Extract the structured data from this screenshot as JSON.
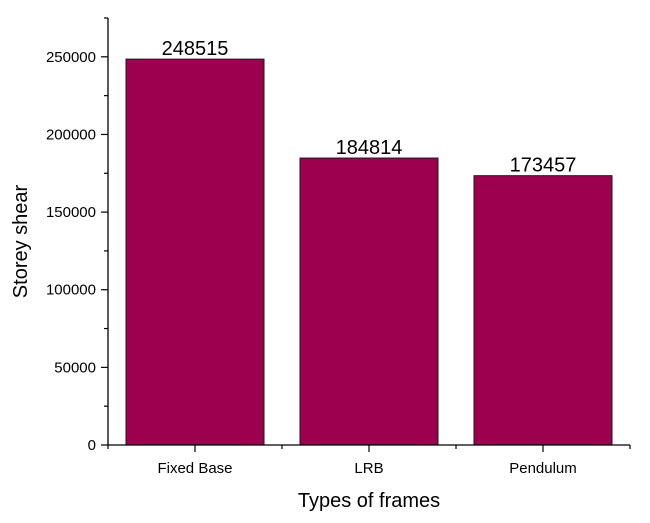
{
  "chart_data": {
    "type": "bar",
    "categories": [
      "Fixed Base",
      "LRB",
      "Pendulum"
    ],
    "values": [
      248515,
      184814,
      173457
    ],
    "data_labels": [
      "248515",
      "184814",
      "173457"
    ],
    "title": "",
    "xlabel": "Types of frames",
    "ylabel": "Storey shear",
    "ylim": [
      0,
      275000
    ],
    "yticks": [
      0,
      50000,
      100000,
      150000,
      200000,
      250000
    ],
    "grid": false,
    "legend": "none",
    "bar_color": "#9E0050",
    "bar_edge_color": "#1a1a1a",
    "axis_color": "#000000"
  }
}
